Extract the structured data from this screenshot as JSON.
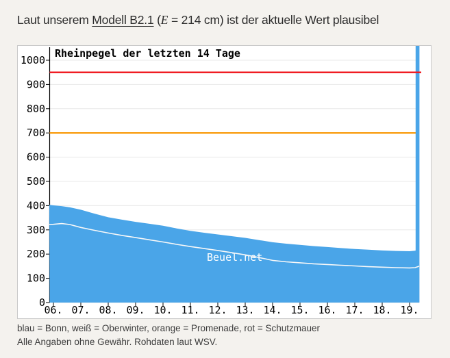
{
  "header": {
    "prefix": "Laut unserem ",
    "model_link": "Modell B2.1",
    "paren_open": " (",
    "math_var": "E",
    "math_value": " = 214 cm)",
    "suffix": " ist der aktuelle Wert plausibel"
  },
  "footer": {
    "legend": "blau = Bonn, weiß = Oberwinter, orange = Promenade, rot = Schutzmauer",
    "disclaimer": "Alle Angaben ohne Gewähr. Rohdaten laut WSV."
  },
  "colors": {
    "page_bg": "#f4f2ee",
    "panel_bg": "#ffffff",
    "panel_border": "#c9c9c9",
    "blue": "#4aa5e8",
    "white_line": "#f8f8f8",
    "orange": "#f9a11b",
    "red": "#f01d23",
    "grid": "#e8e8e8",
    "axis": "#000000"
  },
  "chart_data": {
    "type": "area",
    "title": "Rheinpegel der letzten 14 Tage",
    "watermark": "Beuel.net",
    "unit": "cm",
    "xlabel": "",
    "ylabel": "",
    "ylim": [
      0,
      1060
    ],
    "grid": true,
    "y_ticks": [
      0,
      100,
      200,
      300,
      400,
      500,
      600,
      700,
      800,
      900,
      1000
    ],
    "x_tick_labels": [
      "06.",
      "07.",
      "08.",
      "09.",
      "10.",
      "11.",
      "12.",
      "13.",
      "14.",
      "15.",
      "16.",
      "17.",
      "18.",
      "19."
    ],
    "x_tick_days": [
      6,
      7,
      8,
      9,
      10,
      11,
      12,
      13,
      14,
      15,
      16,
      17,
      18,
      19
    ],
    "x_range_days": [
      5.85,
      19.35
    ],
    "series": [
      {
        "name": "Bonn",
        "color_key": "blue",
        "style": "area",
        "x": [
          5.85,
          6,
          6.3,
          6.6,
          7,
          7.5,
          8,
          8.5,
          9,
          9.5,
          10,
          10.5,
          11,
          11.5,
          12,
          12.5,
          13,
          13.5,
          14,
          14.5,
          15,
          15.5,
          16,
          16.5,
          17,
          17.5,
          18,
          18.5,
          19,
          19.2,
          19.35
        ],
        "values": [
          403,
          401,
          398,
          393,
          383,
          367,
          352,
          342,
          333,
          325,
          317,
          306,
          296,
          288,
          281,
          274,
          267,
          258,
          249,
          243,
          238,
          233,
          229,
          225,
          221,
          218,
          215,
          213,
          212,
          214,
          220
        ]
      },
      {
        "name": "Oberwinter",
        "color_key": "white_line",
        "style": "line",
        "x": [
          5.85,
          6,
          6.3,
          6.6,
          7,
          7.5,
          8,
          8.5,
          9,
          9.5,
          10,
          10.5,
          11,
          11.5,
          12,
          12.5,
          13,
          13.5,
          14,
          14.5,
          15,
          15.5,
          16,
          16.5,
          17,
          17.5,
          18,
          18.5,
          19,
          19.2,
          19.35
        ],
        "values": [
          322,
          323,
          326,
          322,
          310,
          298,
          287,
          277,
          268,
          259,
          250,
          240,
          231,
          223,
          215,
          206,
          197,
          186,
          174,
          168,
          164,
          160,
          157,
          154,
          151,
          148,
          146,
          144,
          143,
          144,
          150
        ]
      }
    ],
    "reference_lines": [
      {
        "name": "Promenade",
        "color_key": "orange",
        "value": 700,
        "layer": "behind"
      },
      {
        "name": "Schutzmauer",
        "color_key": "red",
        "value": 950,
        "layer": "front"
      }
    ],
    "current_spike": {
      "day_start": 19.22,
      "day_end": 19.36,
      "full_height": true,
      "color_key": "blue"
    }
  }
}
